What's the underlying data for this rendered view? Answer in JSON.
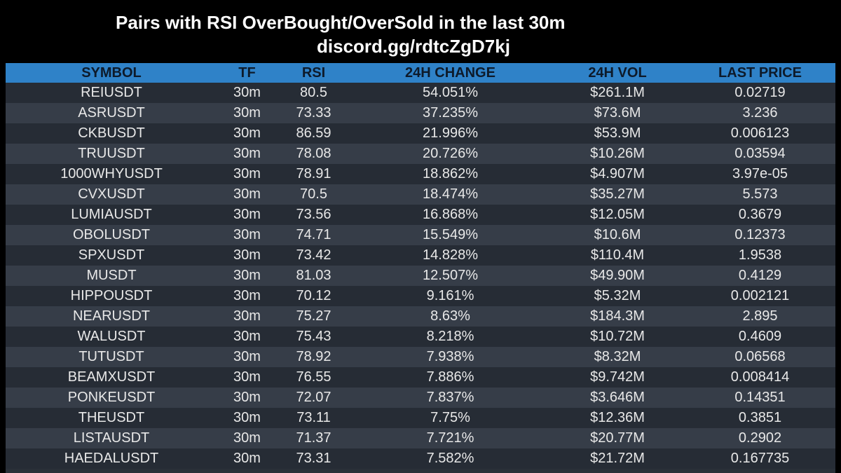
{
  "header": {
    "title": "Pairs with RSI OverBought/OverSold in the last 30m",
    "subtitle": "discord.gg/rdtcZgD7kj"
  },
  "table": {
    "columns": [
      "SYMBOL",
      "TF",
      "RSI",
      "24H CHANGE",
      "24H VOL",
      "LAST PRICE"
    ],
    "rows": [
      [
        "REIUSDT",
        "30m",
        "80.5",
        "54.051%",
        "$261.1M",
        "0.02719"
      ],
      [
        "ASRUSDT",
        "30m",
        "73.33",
        "37.235%",
        "$73.6M",
        "3.236"
      ],
      [
        "CKBUSDT",
        "30m",
        "86.59",
        "21.996%",
        "$53.9M",
        "0.006123"
      ],
      [
        "TRUUSDT",
        "30m",
        "78.08",
        "20.726%",
        "$10.26M",
        "0.03594"
      ],
      [
        "1000WHYUSDT",
        "30m",
        "78.91",
        "18.862%",
        "$4.907M",
        "3.97e-05"
      ],
      [
        "CVXUSDT",
        "30m",
        "70.5",
        "18.474%",
        "$35.27M",
        "5.573"
      ],
      [
        "LUMIAUSDT",
        "30m",
        "73.56",
        "16.868%",
        "$12.05M",
        "0.3679"
      ],
      [
        "OBOLUSDT",
        "30m",
        "74.71",
        "15.549%",
        "$10.6M",
        "0.12373"
      ],
      [
        "SPXUSDT",
        "30m",
        "73.42",
        "14.828%",
        "$110.4M",
        "1.9538"
      ],
      [
        "MUSDT",
        "30m",
        "81.03",
        "12.507%",
        "$49.90M",
        "0.4129"
      ],
      [
        "HIPPOUSDT",
        "30m",
        "70.12",
        "9.161%",
        "$5.32M",
        "0.002121"
      ],
      [
        "NEARUSDT",
        "30m",
        "75.27",
        "8.63%",
        "$184.3M",
        "2.895"
      ],
      [
        "WALUSDT",
        "30m",
        "75.43",
        "8.218%",
        "$10.72M",
        "0.4609"
      ],
      [
        "TUTUSDT",
        "30m",
        "78.92",
        "7.938%",
        "$8.32M",
        "0.06568"
      ],
      [
        "BEAMXUSDT",
        "30m",
        "76.55",
        "7.886%",
        "$9.742M",
        "0.008414"
      ],
      [
        "PONKEUSDT",
        "30m",
        "72.07",
        "7.837%",
        "$3.646M",
        "0.14351"
      ],
      [
        "THEUSDT",
        "30m",
        "73.11",
        "7.75%",
        "$12.36M",
        "0.3851"
      ],
      [
        "LISTAUSDT",
        "30m",
        "71.37",
        "7.721%",
        "$20.77M",
        "0.2902"
      ],
      [
        "HAEDALUSDT",
        "30m",
        "73.31",
        "7.582%",
        "$21.72M",
        "0.167735"
      ]
    ]
  },
  "colors": {
    "background": "#000000",
    "header_row": "#2f82c8",
    "row_odd": "#262c35",
    "row_even": "#363d48",
    "text": "#ffffff"
  }
}
